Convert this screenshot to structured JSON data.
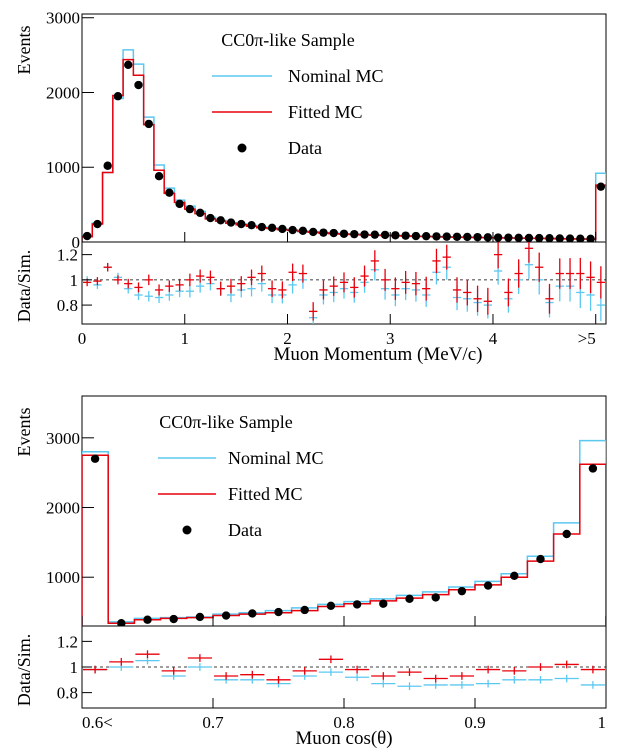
{
  "chart_data": [
    {
      "type": "histogram",
      "panel": "momentum",
      "annotation": "CC0π-like Sample",
      "ylabel": "Events",
      "ratio_ylabel": "Data/Sim.",
      "xlabel": "Muon Momentum (MeV/c)",
      "x_tick_labels": [
        "0",
        "1",
        "2",
        "3",
        "4",
        ">5"
      ],
      "x_ticks": [
        0,
        1,
        2,
        3,
        4,
        5
      ],
      "xlim": [
        0,
        5.1
      ],
      "ylim": [
        0,
        3050
      ],
      "y_ticks": [
        0,
        1000,
        2000,
        3000
      ],
      "y_tick_labels": [
        "0",
        "1000",
        "2000",
        "3000"
      ],
      "ratio_ylim": [
        0.65,
        1.3
      ],
      "ratio_ticks": [
        0.8,
        1,
        1.2
      ],
      "ratio_tick_labels": [
        "0.8",
        "1",
        "1.2"
      ],
      "legend": [
        "Nominal MC",
        "Fitted MC",
        "Data"
      ],
      "colors": {
        "nominal": "#5bc8f0",
        "fitted": "#e8000b",
        "data": "#000000"
      },
      "bin_edges": [
        0,
        0.1,
        0.2,
        0.3,
        0.4,
        0.5,
        0.6,
        0.7,
        0.8,
        0.9,
        1.0,
        1.1,
        1.2,
        1.3,
        1.4,
        1.5,
        1.6,
        1.7,
        1.8,
        1.9,
        2.0,
        2.1,
        2.2,
        2.3,
        2.4,
        2.5,
        2.6,
        2.7,
        2.8,
        2.9,
        3.0,
        3.1,
        3.2,
        3.3,
        3.4,
        3.5,
        3.6,
        3.7,
        3.8,
        3.9,
        4.0,
        4.1,
        4.2,
        4.3,
        4.4,
        4.5,
        4.6,
        4.7,
        4.8,
        4.9,
        5.0,
        5.1
      ],
      "nominal": [
        80,
        250,
        930,
        1920,
        2570,
        2380,
        1670,
        1030,
        720,
        560,
        480,
        410,
        330,
        290,
        260,
        240,
        220,
        200,
        185,
        170,
        160,
        145,
        135,
        125,
        118,
        110,
        105,
        100,
        96,
        92,
        88,
        84,
        80,
        77,
        74,
        71,
        68,
        65,
        62,
        60,
        58,
        56,
        54,
        52,
        50,
        48,
        46,
        44,
        42,
        40,
        920
      ],
      "fitted": [
        70,
        240,
        930,
        1960,
        2440,
        2230,
        1570,
        960,
        650,
        530,
        440,
        380,
        310,
        280,
        250,
        230,
        210,
        190,
        180,
        165,
        155,
        140,
        130,
        120,
        112,
        106,
        100,
        95,
        91,
        87,
        83,
        80,
        76,
        73,
        70,
        67,
        64,
        62,
        60,
        58,
        56,
        54,
        52,
        50,
        48,
        46,
        44,
        42,
        40,
        38,
        760
      ],
      "data": [
        80,
        240,
        1020,
        1950,
        2370,
        2100,
        1580,
        880,
        660,
        510,
        440,
        390,
        320,
        290,
        260,
        240,
        225,
        200,
        190,
        175,
        160,
        150,
        135,
        125,
        120,
        110,
        105,
        100,
        98,
        95,
        90,
        85,
        80,
        78,
        75,
        72,
        70,
        68,
        65,
        62,
        60,
        58,
        56,
        54,
        52,
        50,
        48,
        46,
        44,
        42,
        740
      ],
      "ratio_fitted": [
        0.98,
        0.99,
        1.1,
        1.0,
        0.97,
        0.94,
        1.0,
        0.92,
        0.95,
        0.96,
        1.0,
        1.03,
        1.02,
        0.93,
        0.95,
        0.97,
        1.02,
        1.05,
        0.93,
        0.92,
        1.06,
        1.05,
        0.75,
        0.92,
        0.95,
        0.98,
        0.94,
        1.03,
        1.15,
        1.0,
        0.93,
        0.98,
        0.97,
        0.93,
        1.15,
        1.18,
        0.92,
        0.9,
        0.85,
        0.83,
        1.2,
        0.9,
        1.05,
        1.25,
        1.1,
        0.85,
        1.05,
        1.05,
        1.05,
        1.02,
        0.98
      ],
      "ratio_nominal": [
        1.0,
        0.96,
        1.1,
        1.02,
        0.93,
        0.88,
        0.87,
        0.86,
        0.88,
        0.91,
        0.91,
        0.95,
        0.97,
        0.93,
        0.88,
        0.92,
        0.93,
        0.97,
        0.88,
        0.88,
        0.96,
        1.0,
        0.7,
        0.88,
        0.9,
        0.93,
        0.9,
        0.98,
        1.08,
        0.93,
        0.88,
        0.93,
        0.92,
        0.88,
        1.06,
        1.1,
        0.86,
        0.85,
        0.82,
        0.8,
        1.07,
        0.85,
        1.0,
        1.12,
        1.0,
        0.82,
        0.95,
        0.95,
        0.9,
        0.88,
        0.8
      ]
    },
    {
      "type": "histogram",
      "panel": "costheta",
      "annotation": "CC0π-like Sample",
      "ylabel": "Events",
      "ratio_ylabel": "Data/Sim.",
      "xlabel": "Muon cos(θ)",
      "x_tick_labels": [
        "0.6<",
        "0.7",
        "0.8",
        "0.9",
        "1"
      ],
      "x_ticks": [
        0.6,
        0.7,
        0.8,
        0.9,
        1.0
      ],
      "xlim": [
        0.6,
        1.0
      ],
      "ylim": [
        300,
        3600
      ],
      "y_ticks": [
        1000,
        2000,
        3000
      ],
      "y_tick_labels": [
        "1000",
        "2000",
        "3000"
      ],
      "ratio_ylim": [
        0.68,
        1.32
      ],
      "ratio_ticks": [
        0.8,
        1,
        1.2
      ],
      "ratio_tick_labels": [
        "0.8",
        "1",
        "1.2"
      ],
      "legend": [
        "Nominal MC",
        "Fitted MC",
        "Data"
      ],
      "colors": {
        "nominal": "#5bc8f0",
        "fitted": "#e8000b",
        "data": "#000000"
      },
      "bin_edges": [
        0.6,
        0.62,
        0.64,
        0.66,
        0.68,
        0.7,
        0.72,
        0.74,
        0.76,
        0.78,
        0.8,
        0.82,
        0.84,
        0.86,
        0.88,
        0.9,
        0.92,
        0.94,
        0.96,
        0.98,
        1.0
      ],
      "nominal": [
        2800,
        360,
        410,
        420,
        430,
        470,
        490,
        520,
        560,
        610,
        650,
        690,
        740,
        790,
        860,
        940,
        1050,
        1300,
        1780,
        2960
      ],
      "fitted": [
        2750,
        340,
        390,
        410,
        420,
        450,
        470,
        490,
        520,
        580,
        620,
        660,
        700,
        750,
        820,
        890,
        1000,
        1230,
        1620,
        2620
      ],
      "data": [
        2700,
        340,
        390,
        400,
        430,
        450,
        480,
        500,
        530,
        590,
        610,
        620,
        690,
        710,
        800,
        880,
        1020,
        1260,
        1620,
        2560
      ],
      "ratio_fitted": [
        0.98,
        1.04,
        1.1,
        0.97,
        1.07,
        0.93,
        0.94,
        0.9,
        0.97,
        1.06,
        0.98,
        0.93,
        0.96,
        0.91,
        0.93,
        0.98,
        0.97,
        1.0,
        1.02,
        0.98
      ],
      "ratio_nominal": [
        0.98,
        1.0,
        1.05,
        0.93,
        1.0,
        0.9,
        0.9,
        0.87,
        0.93,
        0.96,
        0.92,
        0.87,
        0.85,
        0.86,
        0.86,
        0.87,
        0.9,
        0.9,
        0.91,
        0.86
      ]
    }
  ]
}
